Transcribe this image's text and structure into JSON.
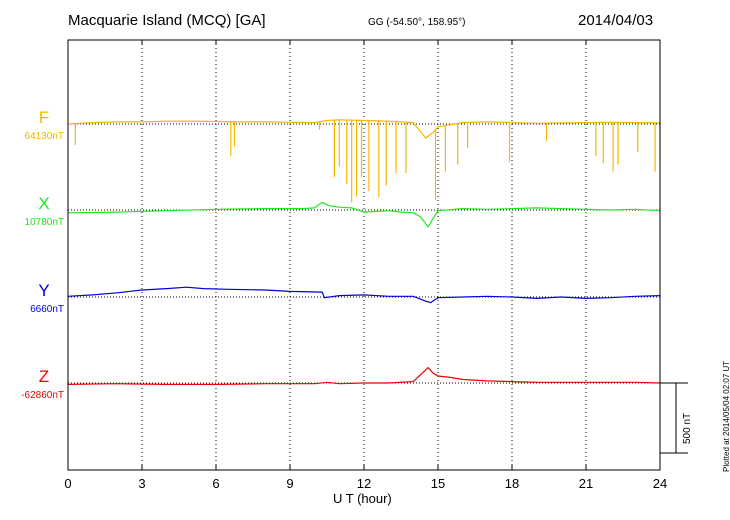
{
  "header": {
    "station": "Macquarie Island (MCQ)  [GA]",
    "coords": "GG (-54.50°, 158.95°)",
    "date": "2014/04/03"
  },
  "footer": {
    "plotted": "Plotted at 2014/05/04 02:07 UT",
    "scale_label": "500 nT"
  },
  "chart_data": {
    "type": "line",
    "xlabel": "U T (hour)",
    "xlim": [
      0,
      24
    ],
    "xticks": [
      0,
      3,
      6,
      9,
      12,
      15,
      18,
      21,
      24
    ],
    "grid": "vertical dotted at every 3 hours",
    "scale_bar_nT": 500,
    "series": [
      {
        "name": "F",
        "baseline_label": "64130nT",
        "baseline_nT": 64130,
        "color": "#f5b800",
        "points": [
          [
            0,
            0
          ],
          [
            1,
            10
          ],
          [
            2,
            15
          ],
          [
            3,
            15
          ],
          [
            4,
            20
          ],
          [
            5,
            20
          ],
          [
            6,
            18
          ],
          [
            7,
            15
          ],
          [
            8,
            15
          ],
          [
            9,
            12
          ],
          [
            10,
            10
          ],
          [
            10.5,
            25
          ],
          [
            11,
            30
          ],
          [
            12,
            25
          ],
          [
            13,
            20
          ],
          [
            14,
            10
          ],
          [
            14.5,
            -100
          ],
          [
            14.8,
            -60
          ],
          [
            15,
            -20
          ],
          [
            16,
            10
          ],
          [
            17,
            15
          ],
          [
            18,
            10
          ],
          [
            19,
            5
          ],
          [
            20,
            8
          ],
          [
            21,
            10
          ],
          [
            22,
            12
          ],
          [
            23,
            10
          ],
          [
            24,
            8
          ]
        ],
        "spikes": [
          [
            0.3,
            -150
          ],
          [
            6.6,
            -230
          ],
          [
            6.75,
            -160
          ],
          [
            10.2,
            -40
          ],
          [
            10.8,
            -380
          ],
          [
            11.0,
            -300
          ],
          [
            11.3,
            -430
          ],
          [
            11.5,
            -560
          ],
          [
            11.7,
            -520
          ],
          [
            11.9,
            -380
          ],
          [
            12.2,
            -480
          ],
          [
            12.6,
            -520
          ],
          [
            12.9,
            -440
          ],
          [
            13.3,
            -350
          ],
          [
            13.7,
            -350
          ],
          [
            14.9,
            -540
          ],
          [
            15.3,
            -340
          ],
          [
            15.8,
            -290
          ],
          [
            16.2,
            -170
          ],
          [
            17.9,
            -270
          ],
          [
            19.4,
            -120
          ],
          [
            21.4,
            -230
          ],
          [
            21.7,
            -280
          ],
          [
            22.1,
            -340
          ],
          [
            22.3,
            -290
          ],
          [
            23.1,
            -200
          ],
          [
            23.8,
            -340
          ],
          [
            24,
            -250
          ]
        ]
      },
      {
        "name": "X",
        "baseline_label": "10780nT",
        "baseline_nT": 10780,
        "color": "#1ee81e",
        "points": [
          [
            0,
            -20
          ],
          [
            2,
            -15
          ],
          [
            4,
            -5
          ],
          [
            6,
            5
          ],
          [
            8,
            10
          ],
          [
            9.5,
            10
          ],
          [
            10,
            15
          ],
          [
            10.3,
            55
          ],
          [
            10.6,
            30
          ],
          [
            11,
            20
          ],
          [
            11.5,
            15
          ],
          [
            12,
            -15
          ],
          [
            12.5,
            -10
          ],
          [
            13,
            -5
          ],
          [
            13.5,
            -15
          ],
          [
            14,
            -20
          ],
          [
            14.3,
            -50
          ],
          [
            14.6,
            -120
          ],
          [
            14.8,
            -60
          ],
          [
            15,
            -5
          ],
          [
            16,
            10
          ],
          [
            17,
            5
          ],
          [
            18,
            10
          ],
          [
            19,
            15
          ],
          [
            20,
            10
          ],
          [
            21,
            5
          ],
          [
            22,
            0
          ],
          [
            23,
            5
          ],
          [
            24,
            -5
          ]
        ]
      },
      {
        "name": "Y",
        "baseline_label": "6660nT",
        "baseline_nT": 6660,
        "color": "#0000dd",
        "points": [
          [
            0,
            5
          ],
          [
            1,
            15
          ],
          [
            2,
            30
          ],
          [
            3,
            50
          ],
          [
            4,
            60
          ],
          [
            4.8,
            70
          ],
          [
            5.5,
            60
          ],
          [
            6.5,
            55
          ],
          [
            8,
            50
          ],
          [
            9,
            40
          ],
          [
            10.3,
            35
          ],
          [
            10.4,
            -5
          ],
          [
            11,
            10
          ],
          [
            12,
            15
          ],
          [
            13,
            5
          ],
          [
            14,
            5
          ],
          [
            14.5,
            -30
          ],
          [
            14.7,
            -40
          ],
          [
            15,
            -5
          ],
          [
            16,
            0
          ],
          [
            17,
            5
          ],
          [
            18,
            0
          ],
          [
            19,
            -10
          ],
          [
            20,
            0
          ],
          [
            21,
            -10
          ],
          [
            22,
            -5
          ],
          [
            23,
            5
          ],
          [
            24,
            10
          ]
        ]
      },
      {
        "name": "Z",
        "baseline_label": "-62860nT",
        "baseline_nT": -62860,
        "color": "#ee0000",
        "points": [
          [
            0,
            -10
          ],
          [
            2,
            -5
          ],
          [
            4,
            -10
          ],
          [
            6,
            -10
          ],
          [
            8,
            -5
          ],
          [
            10,
            -5
          ],
          [
            10.5,
            5
          ],
          [
            11,
            -5
          ],
          [
            12,
            0
          ],
          [
            13,
            0
          ],
          [
            14,
            10
          ],
          [
            14.3,
            60
          ],
          [
            14.6,
            110
          ],
          [
            14.8,
            70
          ],
          [
            15,
            50
          ],
          [
            15.5,
            40
          ],
          [
            16,
            25
          ],
          [
            17,
            15
          ],
          [
            18,
            10
          ],
          [
            19,
            5
          ],
          [
            20,
            5
          ],
          [
            21,
            5
          ],
          [
            22,
            5
          ],
          [
            23,
            5
          ],
          [
            24,
            0
          ]
        ]
      }
    ]
  }
}
